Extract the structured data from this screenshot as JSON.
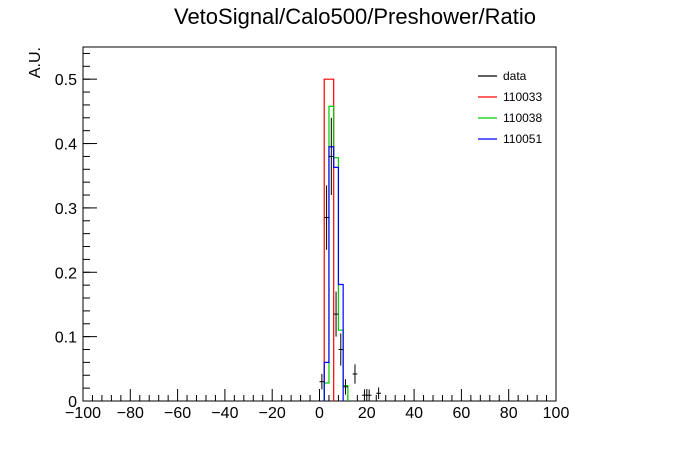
{
  "chart_data": {
    "type": "histogram",
    "title": "VetoSignal/Calo500/Preshower/Ratio",
    "xlabel": "",
    "ylabel": "A.U.",
    "xlim": [
      -100,
      100
    ],
    "ylim": [
      0,
      0.55
    ],
    "x_major_ticks": [
      -100,
      -80,
      -60,
      -40,
      -20,
      0,
      20,
      40,
      60,
      80,
      100
    ],
    "x_tick_labels": [
      "−100",
      "−80",
      "−60",
      "−40",
      "−20",
      "0",
      "20",
      "40",
      "60",
      "80",
      "100"
    ],
    "y_major_ticks": [
      0,
      0.1,
      0.2,
      0.3,
      0.4,
      0.5
    ],
    "y_tick_labels": [
      "0",
      "0.1",
      "0.2",
      "0.3",
      "0.4",
      "0.5"
    ],
    "grid": false,
    "legend_position": "top-right",
    "legend": [
      {
        "name": "data",
        "color": "#000000"
      },
      {
        "name": "110033",
        "color": "#ff0000"
      },
      {
        "name": "110038",
        "color": "#00cc00"
      },
      {
        "name": "110051",
        "color": "#0000ff"
      }
    ],
    "series": [
      {
        "name": "110033",
        "kind": "step",
        "color": "#ff0000",
        "bins": [
          [
            2,
            6,
            0.5
          ]
        ]
      },
      {
        "name": "110038",
        "kind": "step",
        "color": "#00cc00",
        "bins": [
          [
            2,
            4,
            0.028
          ],
          [
            4,
            6,
            0.458
          ],
          [
            6,
            8,
            0.378
          ],
          [
            8,
            10,
            0.11
          ],
          [
            10,
            12,
            0.024
          ]
        ]
      },
      {
        "name": "110051",
        "kind": "step",
        "color": "#0000ff",
        "bins": [
          [
            2,
            4,
            0.06
          ],
          [
            4,
            6,
            0.395
          ],
          [
            6,
            8,
            0.363
          ],
          [
            8,
            10,
            0.181
          ]
        ]
      },
      {
        "name": "data",
        "kind": "points",
        "color": "#000000",
        "points": [
          {
            "x": 1,
            "y": 0.03,
            "err": 0.012
          },
          {
            "x": 3,
            "y": 0.285,
            "err": 0.05
          },
          {
            "x": 5,
            "y": 0.38,
            "err": 0.06
          },
          {
            "x": 7,
            "y": 0.135,
            "err": 0.035
          },
          {
            "x": 9,
            "y": 0.08,
            "err": 0.025
          },
          {
            "x": 11,
            "y": 0.022,
            "err": 0.012
          },
          {
            "x": 15,
            "y": 0.042,
            "err": 0.015
          },
          {
            "x": 19,
            "y": 0.009,
            "err": 0.009
          },
          {
            "x": 21,
            "y": 0.009,
            "err": 0.009
          },
          {
            "x": 25,
            "y": 0.012,
            "err": 0.009
          }
        ]
      }
    ]
  }
}
